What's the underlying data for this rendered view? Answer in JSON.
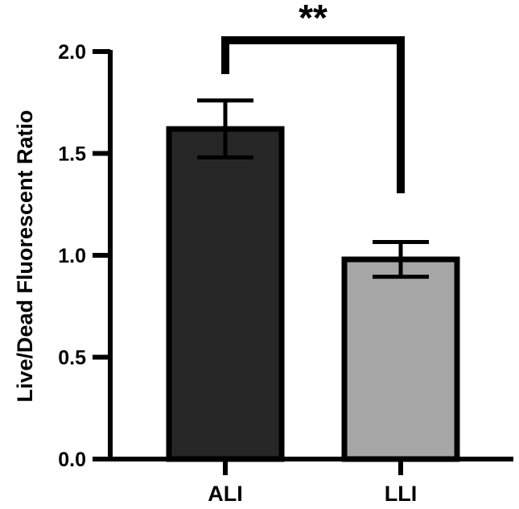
{
  "chart_data": {
    "type": "bar",
    "title": "",
    "xlabel": "",
    "ylabel": "Live/Dead Fluorescent Ratio",
    "ylim": [
      0,
      2.0
    ],
    "yticks": [
      0.0,
      0.5,
      1.0,
      1.5,
      2.0
    ],
    "ytick_labels": [
      "0.0",
      "0.5",
      "1.0",
      "1.5",
      "2.0"
    ],
    "categories": [
      "ALI",
      "LLI"
    ],
    "values": [
      1.62,
      0.98
    ],
    "error": [
      0.14,
      0.085
    ],
    "bar_colors": [
      "#262626",
      "#a6a6a6"
    ],
    "grid": false,
    "legend": "none",
    "significance": {
      "label": "**",
      "between": [
        "ALI",
        "LLI"
      ]
    }
  }
}
